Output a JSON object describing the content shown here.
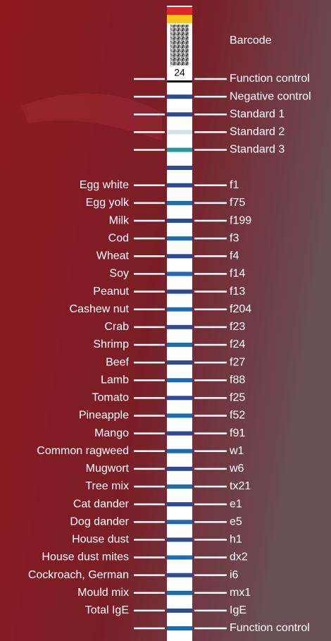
{
  "barcode_label": "Barcode",
  "strip_number": "24",
  "rows": [
    {
      "right": "Function control"
    },
    {
      "right": "Negative control"
    },
    {
      "right": "Standard 1"
    },
    {
      "right": "Standard 2"
    },
    {
      "right": "Standard 3"
    },
    {
      "left": "Egg white",
      "right": "f1"
    },
    {
      "left": "Egg yolk",
      "right": "f75"
    },
    {
      "left": "Milk",
      "right": "f199"
    },
    {
      "left": "Cod",
      "right": "f3"
    },
    {
      "left": "Wheat",
      "right": "f4"
    },
    {
      "left": "Soy",
      "right": "f14"
    },
    {
      "left": "Peanut",
      "right": "f13"
    },
    {
      "left": "Cashew nut",
      "right": "f204"
    },
    {
      "left": "Crab",
      "right": "f23"
    },
    {
      "left": "Shrimp",
      "right": "f24"
    },
    {
      "left": "Beef",
      "right": "f27"
    },
    {
      "left": "Lamb",
      "right": "f88"
    },
    {
      "left": "Tomato",
      "right": "f25"
    },
    {
      "left": "Pineapple",
      "right": "f52"
    },
    {
      "left": "Mango",
      "right": "f91"
    },
    {
      "left": "Common ragweed",
      "right": "w1"
    },
    {
      "left": "Mugwort",
      "right": "w6"
    },
    {
      "left": "Tree mix",
      "right": "tx21"
    },
    {
      "left": "Cat dander",
      "right": "e1"
    },
    {
      "left": "Dog dander",
      "right": "e5"
    },
    {
      "left": "House dust",
      "right": "h1"
    },
    {
      "left": "House dust mites",
      "right": "dx2"
    },
    {
      "left": "Cockroach, German",
      "right": "i6"
    },
    {
      "left": "Mould mix",
      "right": "mx1"
    },
    {
      "left": "Total IgE",
      "right": "IgE"
    },
    {
      "right": "Function control"
    }
  ]
}
